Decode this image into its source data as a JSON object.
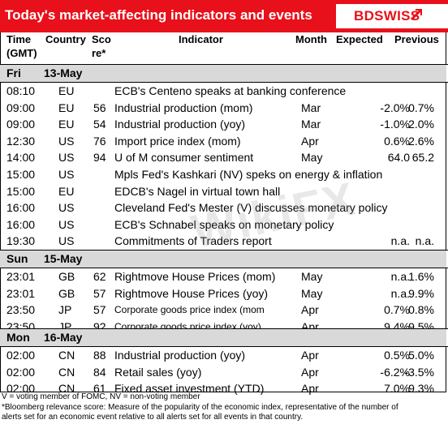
{
  "title": "Today's market-affecting indicators and events",
  "logo": {
    "text": "BDSWISS"
  },
  "watermark": "WikiFX",
  "colors": {
    "brand_red": "#e8101a",
    "section_gray": "#d9d9d9"
  },
  "headers": {
    "time_line1": "Time",
    "time_line2": "(GMT)",
    "country": "Country",
    "score_line1": "Sco",
    "score_line2": "re*",
    "indicator": "Indicator",
    "month": "Month",
    "expected": "Expected",
    "previous": "Previous"
  },
  "sections": [
    {
      "day": "Fri",
      "date": "13-May",
      "rows": [
        {
          "time": "08:10",
          "country": "EU",
          "score": "",
          "indicator": "ECB's Centeno speaks at banking conference",
          "month": "",
          "expected": "",
          "previous": ""
        },
        {
          "time": "09:00",
          "country": "EU",
          "score": "56",
          "indicator": "Industrial production (mom)",
          "month": "Mar",
          "expected": "-2.0%",
          "previous": "0.7%"
        },
        {
          "time": "09:00",
          "country": "EU",
          "score": "54",
          "indicator": "Industrial production (yoy)",
          "month": "Mar",
          "expected": "-1.0%",
          "previous": "2.0%"
        },
        {
          "time": "12:30",
          "country": "US",
          "score": "76",
          "indicator": "Import price index (mom)",
          "month": "Apr",
          "expected": "0.6%",
          "previous": "2.6%"
        },
        {
          "time": "14:00",
          "country": "US",
          "score": "94",
          "indicator": "U of M consumer sentiment",
          "month": "May",
          "expected": "64.0",
          "previous": "65.2"
        },
        {
          "time": "15:00",
          "country": "US",
          "score": "",
          "indicator": "Mpls Fed's Kashkari (NV) speks on energy & inflation",
          "month": "",
          "expected": "",
          "previous": ""
        },
        {
          "time": "15:00",
          "country": "EU",
          "score": "",
          "indicator": "EDCB's Nagel in virtual town hall",
          "month": "",
          "expected": "",
          "previous": ""
        },
        {
          "time": "16:00",
          "country": "US",
          "score": "",
          "indicator": "Cleveland Fed's Mester (V) discusses monetary policy",
          "month": "",
          "expected": "",
          "previous": ""
        },
        {
          "time": "16:00",
          "country": "US",
          "score": "",
          "indicator": "ECB's Schnabel speaks on monetary policy",
          "month": "",
          "expected": "",
          "previous": ""
        },
        {
          "time": "19:30",
          "country": "US",
          "score": "",
          "indicator": "Commitments of Traders  report",
          "month": "",
          "expected": "n.a.",
          "previous": "n.a."
        }
      ]
    },
    {
      "day": "Sun",
      "date": "15-May",
      "rows": [
        {
          "time": "23:01",
          "country": "GB",
          "score": "62",
          "indicator": "Rightmove House Prices (mom)",
          "month": "May",
          "expected": "n.a.",
          "previous": "1.6%"
        },
        {
          "time": "23:01",
          "country": "GB",
          "score": "57",
          "indicator": "Rightmove House Prices (yoy)",
          "month": "May",
          "expected": "n.a.",
          "previous": "9.9%"
        },
        {
          "time": "23:50",
          "country": "JP",
          "score": "57",
          "indicator": "Corporate goods price index (mom",
          "month": "Apr",
          "expected": "0.7%",
          "previous": "0.8%",
          "small": true
        },
        {
          "time": "23:50",
          "country": "JP",
          "score": "92",
          "indicator": "Corporate goods price index (yoy)",
          "month": "Apr",
          "expected": "9.4%",
          "previous": "9.5%",
          "small": true
        }
      ]
    },
    {
      "day": "Mon",
      "date": "16-May",
      "rows": [
        {
          "time": "02:00",
          "country": "CN",
          "score": "88",
          "indicator": "Industrial production (yoy)",
          "month": "Apr",
          "expected": "0.5%",
          "previous": "5.0%"
        },
        {
          "time": "02:00",
          "country": "CN",
          "score": "84",
          "indicator": "Retail sales (yoy)",
          "month": "Apr",
          "expected": "-6.2%",
          "previous": "-3.5%"
        },
        {
          "time": "02:00",
          "country": "CN",
          "score": "61",
          "indicator": "Fixed asset investment (YTD)",
          "month": "Apr",
          "expected": "7.0%",
          "previous": "9.3%"
        }
      ]
    }
  ],
  "footnotes": [
    "V = voting member of FOMC, NV = non-voting member",
    "*Bloomberg relevance score:  Measure of the popularity of the economic index, representative of the number of",
    "alerts set for an economic event relative to all alerts set for all events in that country."
  ]
}
